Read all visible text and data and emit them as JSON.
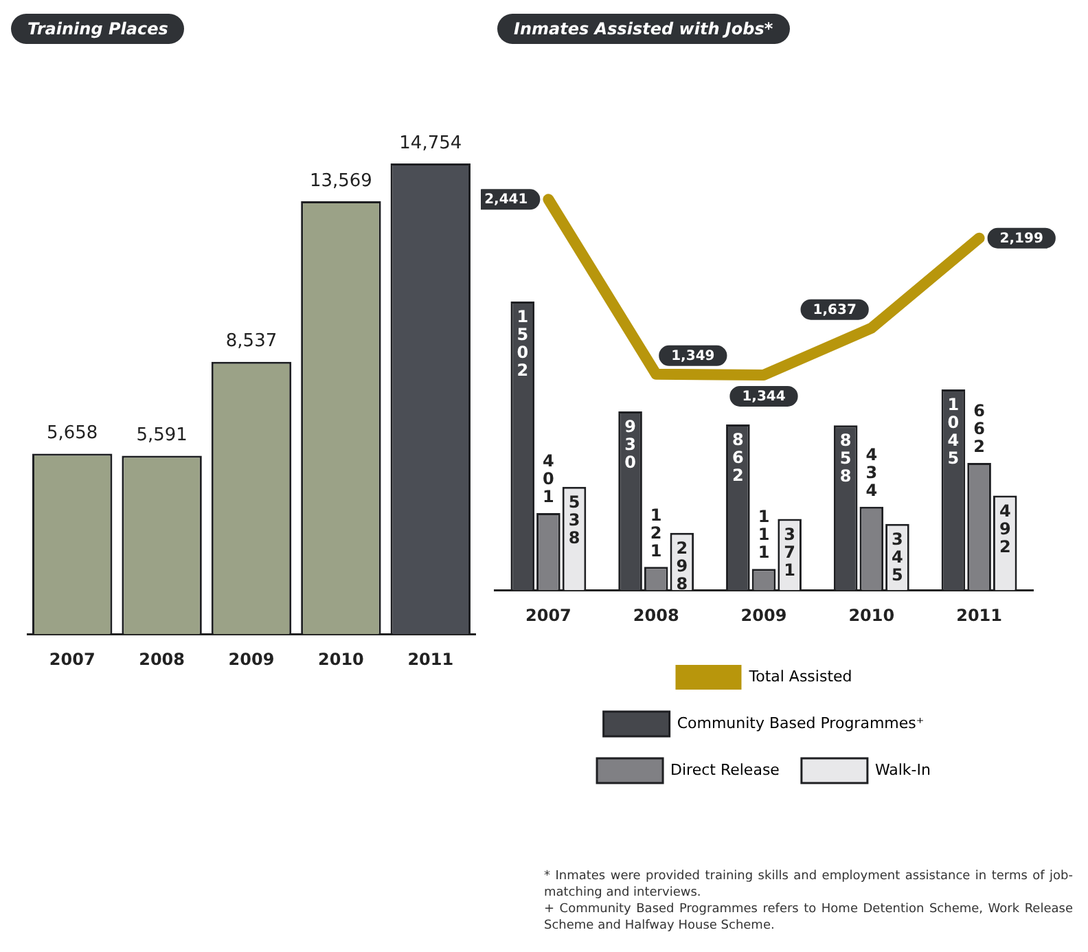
{
  "chart_data": [
    {
      "type": "bar",
      "title": "Training Places",
      "categories": [
        "2007",
        "2008",
        "2009",
        "2010",
        "2011"
      ],
      "values": [
        5658,
        5591,
        8537,
        13569,
        14754
      ],
      "colors": [
        "#9ba287",
        "#9ba287",
        "#9ba287",
        "#9ba287",
        "#4b4e55"
      ],
      "value_labels": [
        "5,658",
        "5,591",
        "8,537",
        "13,569",
        "14,754"
      ]
    },
    {
      "type": "bar",
      "title": "Inmates Assisted with Jobs*",
      "categories": [
        "2007",
        "2008",
        "2009",
        "2010",
        "2011"
      ],
      "series": [
        {
          "name": "Total Assisted",
          "type": "line",
          "axis": "y2",
          "color": "#b8960c",
          "values": [
            2441,
            1349,
            1344,
            1637,
            2199
          ],
          "value_labels": [
            "2,441",
            "1,349",
            "1,344",
            "1,637",
            "2,199"
          ]
        },
        {
          "name": "Community Based Programmes⁺",
          "color": "#45474c",
          "values": [
            1502,
            930,
            862,
            858,
            1045
          ]
        },
        {
          "name": "Direct Release",
          "color": "#808084",
          "values": [
            401,
            121,
            111,
            434,
            662
          ]
        },
        {
          "name": "Walk-In",
          "color": "#e8e8ea",
          "values": [
            538,
            298,
            371,
            345,
            492
          ]
        }
      ],
      "data_labels": true,
      "legend": "bottom",
      "annotations": [
        "* Inmates were provided training skills and employment assistance in terms of job-matching and interviews.",
        "+ Community Based Programmes refers to Home Detention Scheme, Work Release Scheme and Halfway House Scheme."
      ]
    }
  ]
}
